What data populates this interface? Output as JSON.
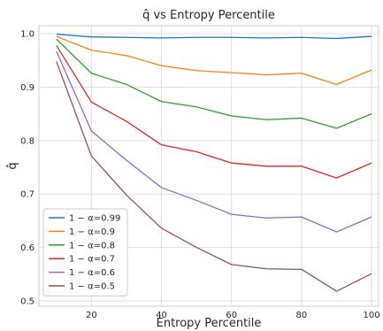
{
  "chart_data": {
    "type": "line",
    "title": "q̂ vs Entropy Percentile",
    "xlabel": "Entropy Percentile",
    "ylabel": "q̂",
    "x": [
      10,
      20,
      30,
      40,
      50,
      60,
      70,
      80,
      90,
      100
    ],
    "xticks": [
      20,
      40,
      60,
      80,
      100
    ],
    "yticks": [
      0.5,
      0.6,
      0.7,
      0.8,
      0.9,
      1.0
    ],
    "ytick_labels": [
      "0.5",
      "0.6",
      "0.7",
      "0.8",
      "0.9",
      "1.0"
    ],
    "xlim": [
      5,
      102
    ],
    "ylim": [
      0.49,
      1.015
    ],
    "grid": true,
    "legend_position": "lower-left",
    "series": [
      {
        "name": "1 − α=0.99",
        "color": "#1f77b4",
        "values": [
          0.999,
          0.994,
          0.993,
          0.992,
          0.993,
          0.993,
          0.992,
          0.993,
          0.991,
          0.995
        ]
      },
      {
        "name": "1 − α=0.9",
        "color": "#ff7f0e",
        "values": [
          0.995,
          0.969,
          0.959,
          0.94,
          0.931,
          0.927,
          0.923,
          0.926,
          0.905,
          0.932
        ]
      },
      {
        "name": "1 − α=0.8",
        "color": "#2ca02c",
        "values": [
          0.99,
          0.926,
          0.905,
          0.873,
          0.863,
          0.846,
          0.839,
          0.842,
          0.823,
          0.85
        ]
      },
      {
        "name": "1 − α=0.7",
        "color": "#d62728",
        "values": [
          0.978,
          0.872,
          0.836,
          0.792,
          0.779,
          0.758,
          0.752,
          0.752,
          0.73,
          0.758
        ]
      },
      {
        "name": "1 − α=0.6",
        "color": "#9467bd",
        "values": [
          0.967,
          0.818,
          0.763,
          0.712,
          0.688,
          0.662,
          0.655,
          0.657,
          0.629,
          0.657
        ]
      },
      {
        "name": "1 − α=0.5",
        "color": "#8c564b",
        "values": [
          0.948,
          0.771,
          0.698,
          0.636,
          0.6,
          0.568,
          0.56,
          0.559,
          0.518,
          0.551
        ]
      }
    ]
  }
}
